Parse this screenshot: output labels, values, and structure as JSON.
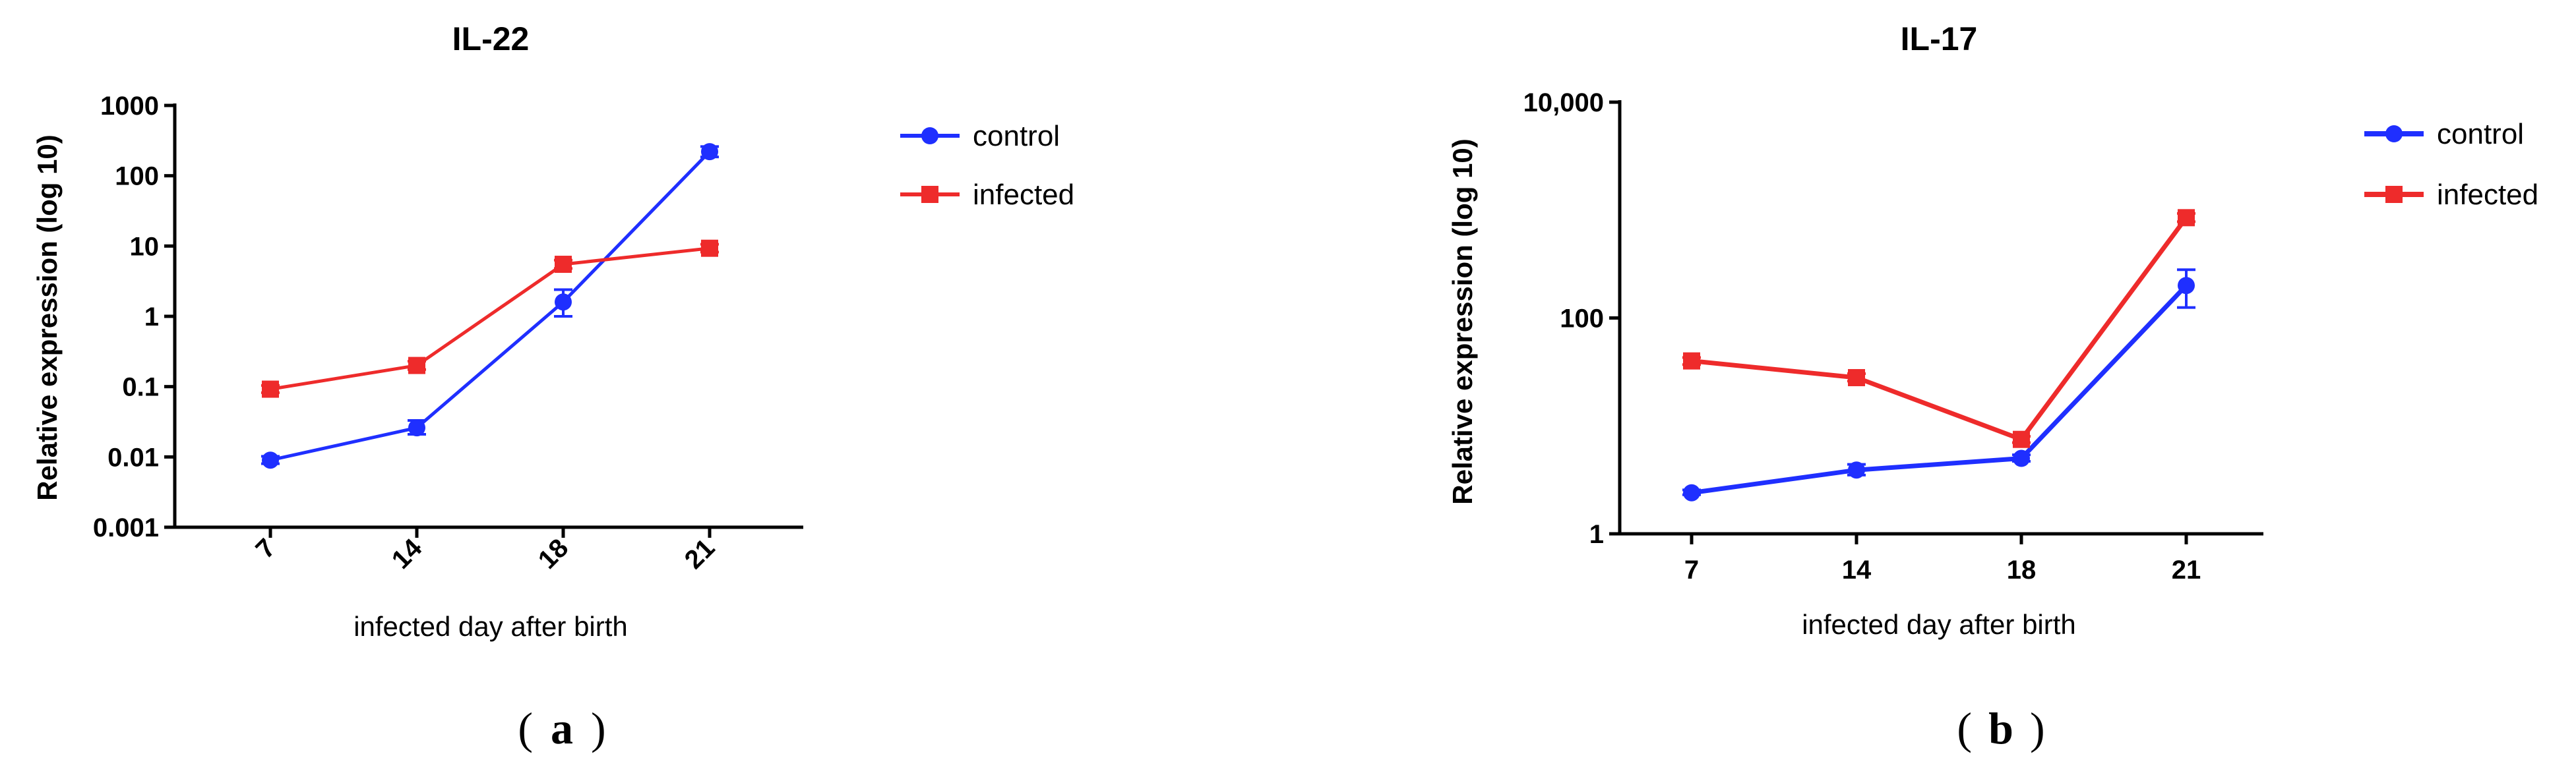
{
  "colors": {
    "control": "#1f2fff",
    "infected": "#ee2b2b",
    "axis": "#000000"
  },
  "chart_data": [
    {
      "type": "line",
      "title": "IL-22",
      "panel_label": "a",
      "xlabel": "infected day after birth",
      "ylabel": "Relative expression (log 10)",
      "y_scale": "log",
      "ylim": [
        0.001,
        1000
      ],
      "yticks": [
        {
          "value": 0.001,
          "label": "0.001"
        },
        {
          "value": 0.01,
          "label": "0.01"
        },
        {
          "value": 0.1,
          "label": "0.1"
        },
        {
          "value": 1,
          "label": "1"
        },
        {
          "value": 10,
          "label": "10"
        },
        {
          "value": 100,
          "label": "100"
        },
        {
          "value": 1000,
          "label": "1000"
        }
      ],
      "categories": [
        "7",
        "14",
        "18",
        "21"
      ],
      "x_tick_rotation": -45,
      "legend_position": "right",
      "series": [
        {
          "name": "control",
          "marker": "circle",
          "values": [
            0.009,
            0.026,
            1.6,
            220
          ],
          "err_low": [
            0.008,
            0.021,
            1.0,
            185
          ],
          "err_high": [
            0.0102,
            0.033,
            2.4,
            260
          ]
        },
        {
          "name": "infected",
          "marker": "square",
          "values": [
            0.092,
            0.2,
            5.5,
            9.3
          ],
          "err_low": [
            0.082,
            0.175,
            4.8,
            8.2
          ],
          "err_high": [
            0.104,
            0.23,
            6.3,
            10.6
          ]
        }
      ]
    },
    {
      "type": "line",
      "title": "IL-17",
      "panel_label": "b",
      "xlabel": "infected day after birth",
      "ylabel": "Relative expression (log 10)",
      "y_scale": "log",
      "ylim": [
        1,
        10000
      ],
      "yticks": [
        {
          "value": 1,
          "label": "1"
        },
        {
          "value": 100,
          "label": "100"
        },
        {
          "value": 10000,
          "label": "10,000"
        }
      ],
      "categories": [
        "7",
        "14",
        "18",
        "21"
      ],
      "x_tick_rotation": 0,
      "legend_position": "right",
      "series": [
        {
          "name": "control",
          "marker": "circle",
          "values": [
            2.4,
            3.9,
            5.0,
            200
          ],
          "err_low": [
            2.3,
            3.5,
            4.7,
            125
          ],
          "err_high": [
            2.55,
            4.4,
            5.4,
            280
          ]
        },
        {
          "name": "infected",
          "marker": "square",
          "values": [
            40,
            28,
            7.5,
            850
          ],
          "err_low": [
            37,
            26,
            7.0,
            780
          ],
          "err_high": [
            43,
            30.5,
            8.0,
            930
          ]
        }
      ]
    }
  ]
}
